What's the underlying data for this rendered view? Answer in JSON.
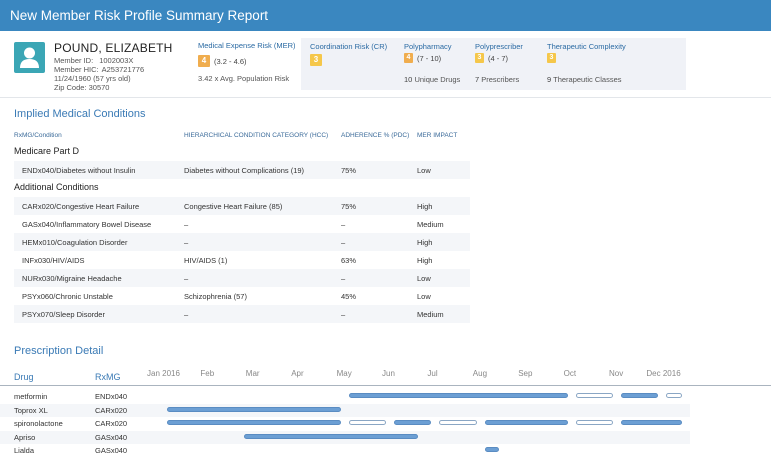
{
  "title": "New Member Risk Profile Summary Report",
  "patient": {
    "name": "POUND, ELIZABETH",
    "member_id_label": "Member ID:",
    "member_id": "1002003X",
    "hic_label": "Member HIC:",
    "hic": "A253721776",
    "dob": "11/24/1960 (57 yrs old)",
    "zip": "Zip Code: 30570"
  },
  "mer": {
    "label": "Medical Expense Risk (MER)",
    "score": "4",
    "range": "(3.2 - 4.6)",
    "sub": "3.42 x Avg. Population Risk"
  },
  "scores": [
    {
      "label": "Coordination Risk (CR)",
      "score": "3",
      "range": "",
      "sub_num": "",
      "sub_text": ""
    },
    {
      "label": "Polypharmacy",
      "score": "4",
      "range": "(7 - 10)",
      "sub_num": "10",
      "sub_text": "Unique Drugs"
    },
    {
      "label": "Polyprescriber",
      "score": "3",
      "range": "(4 - 7)",
      "sub_num": "7",
      "sub_text": "Prescribers"
    },
    {
      "label": "Therapeutic Complexity",
      "score": "3",
      "range": "",
      "sub_num": "9",
      "sub_text": "Therapeutic Classes"
    }
  ],
  "colors": {
    "header": "#3a87c0",
    "badge_orange": "#f0ad4e",
    "badge_yellow": "#f5c74a",
    "bar": "#6c9fd4",
    "avatar": "#3ba6b5"
  },
  "conditions": {
    "title": "Implied Medical Conditions",
    "columns": [
      "RxMG/Condition",
      "HIERARCHICAL CONDITION CATEGORY (HCC)",
      "ADHERENCE % (PDC)",
      "MER IMPACT"
    ],
    "group1": "Medicare Part D",
    "group1_rows": [
      {
        "condition": "ENDx040/Diabetes without Insulin",
        "hcc": "Diabetes without Complications (19)",
        "pdc": "75%",
        "impact": "Low"
      }
    ],
    "group2": "Additional Conditions",
    "group2_rows": [
      {
        "condition": "CARx020/Congestive Heart Failure",
        "hcc": "Congestive Heart Failure (85)",
        "pdc": "75%",
        "impact": "High"
      },
      {
        "condition": "GASx040/Inflammatory Bowel Disease",
        "hcc": "–",
        "pdc": "–",
        "impact": "Medium"
      },
      {
        "condition": "HEMx010/Coagulation Disorder",
        "hcc": "–",
        "pdc": "–",
        "impact": "High"
      },
      {
        "condition": "INFx030/HIV/AIDS",
        "hcc": "HIV/AIDS (1)",
        "pdc": "63%",
        "impact": "High"
      },
      {
        "condition": "NURx030/Migraine Headache",
        "hcc": "–",
        "pdc": "–",
        "impact": "Low"
      },
      {
        "condition": "PSYx060/Chronic Unstable",
        "hcc": "Schizophrenia (57)",
        "pdc": "45%",
        "impact": "Low"
      },
      {
        "condition": "PSYx070/Sleep Disorder",
        "hcc": "–",
        "pdc": "–",
        "impact": "Medium"
      }
    ]
  },
  "prescriptions": {
    "title": "Prescription Detail",
    "drug_header": "Drug",
    "rxmg_header": "RxMG",
    "months": [
      "Jan 2016",
      "Feb",
      "Mar",
      "Apr",
      "May",
      "Jun",
      "Jul",
      "Aug",
      "Sep",
      "Oct",
      "Nov",
      "Dec 2016"
    ],
    "rows": [
      {
        "drug": "metformin",
        "rxmg": "ENDx040",
        "fills": [
          {
            "start": 4.5,
            "end": 9.5,
            "filled": true
          },
          {
            "start": 9.5,
            "end": 10.5,
            "filled": false
          },
          {
            "start": 10.5,
            "end": 11.5,
            "filled": true
          },
          {
            "start": 11.5,
            "end": 12.5,
            "filled": false
          }
        ]
      },
      {
        "drug": "Toprox XL",
        "rxmg": "CARx020",
        "fills": [
          {
            "start": 0.5,
            "end": 4.5,
            "filled": true
          }
        ]
      },
      {
        "drug": "spironolactone",
        "rxmg": "CARx020",
        "fills": [
          {
            "start": 0.5,
            "end": 4.5,
            "filled": true
          },
          {
            "start": 4.5,
            "end": 5.5,
            "filled": false
          },
          {
            "start": 5.5,
            "end": 6.5,
            "filled": true
          },
          {
            "start": 6.5,
            "end": 7.5,
            "filled": false
          },
          {
            "start": 7.5,
            "end": 9.5,
            "filled": true
          },
          {
            "start": 9.5,
            "end": 10.5,
            "filled": false
          },
          {
            "start": 10.5,
            "end": 12.5,
            "filled": true
          }
        ]
      },
      {
        "drug": "Apriso",
        "rxmg": "GASx040",
        "fills": [
          {
            "start": 2.2,
            "end": 6.2,
            "filled": true
          }
        ]
      },
      {
        "drug": "Lialda",
        "rxmg": "GASx040",
        "fills": [
          {
            "start": 7.5,
            "end": 8.0,
            "filled": true
          }
        ]
      }
    ]
  }
}
